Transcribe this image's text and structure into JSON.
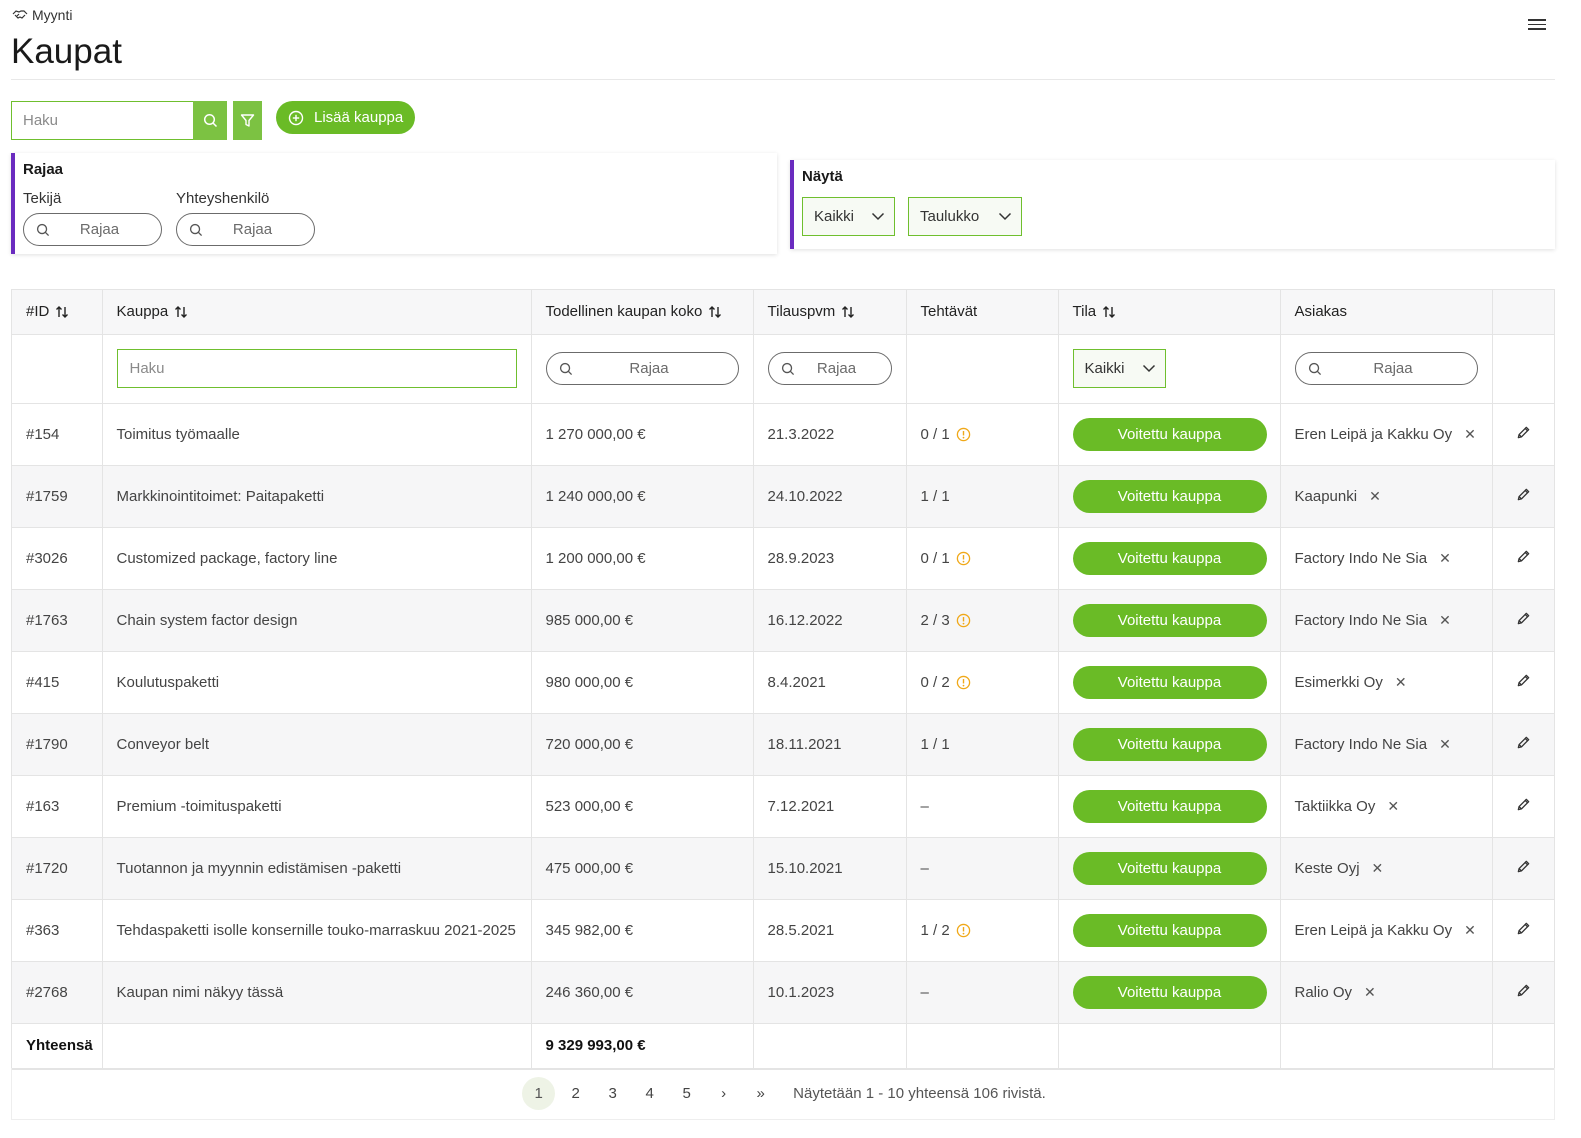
{
  "header": {
    "breadcrumb": "Myynti",
    "title": "Kaupat"
  },
  "toolbar": {
    "search_placeholder": "Haku",
    "add_label": "Lisää kauppa"
  },
  "rajaa_panel": {
    "title": "Rajaa",
    "tekija_label": "Tekijä",
    "tekija_placeholder": "Rajaa",
    "yhteys_label": "Yhteyshenkilö",
    "yhteys_placeholder": "Rajaa"
  },
  "nayta_panel": {
    "title": "Näytä",
    "select1": "Kaikki",
    "select2": "Taulukko"
  },
  "table": {
    "columns": {
      "id": "#ID",
      "kauppa": "Kauppa",
      "koko": "Todellinen kaupan koko",
      "pvm": "Tilauspvm",
      "tehtavat": "Tehtävät",
      "tila": "Tila",
      "asiakas": "Asiakas"
    },
    "filters": {
      "kauppa_placeholder": "Haku",
      "koko_placeholder": "Rajaa",
      "pvm_placeholder": "Rajaa",
      "tila_value": "Kaikki",
      "asiakas_placeholder": "Rajaa"
    },
    "rows": [
      {
        "id": "#154",
        "name": "Toimitus työmaalle",
        "size": "1 270 000,00 €",
        "date": "21.3.2022",
        "tasks": "0 / 1",
        "warn": true,
        "status": "Voitettu kauppa",
        "customer": "Eren Leipä ja Kakku Oy"
      },
      {
        "id": "#1759",
        "name": "Markkinointitoimet: Paitapaketti",
        "size": "1 240 000,00 €",
        "date": "24.10.2022",
        "tasks": "1 / 1",
        "warn": false,
        "status": "Voitettu kauppa",
        "customer": "Kaapunki"
      },
      {
        "id": "#3026",
        "name": "Customized package, factory line",
        "size": "1 200 000,00 €",
        "date": "28.9.2023",
        "tasks": "0 / 1",
        "warn": true,
        "status": "Voitettu kauppa",
        "customer": "Factory Indo Ne Sia"
      },
      {
        "id": "#1763",
        "name": "Chain system factor design",
        "size": "985 000,00 €",
        "date": "16.12.2022",
        "tasks": "2 / 3",
        "warn": true,
        "status": "Voitettu kauppa",
        "customer": "Factory Indo Ne Sia"
      },
      {
        "id": "#415",
        "name": "Koulutuspaketti",
        "size": "980 000,00 €",
        "date": "8.4.2021",
        "tasks": "0 / 2",
        "warn": true,
        "status": "Voitettu kauppa",
        "customer": "Esimerkki Oy"
      },
      {
        "id": "#1790",
        "name": "Conveyor belt",
        "size": "720 000,00 €",
        "date": "18.11.2021",
        "tasks": "1 / 1",
        "warn": false,
        "status": "Voitettu kauppa",
        "customer": "Factory Indo Ne Sia"
      },
      {
        "id": "#163",
        "name": "Premium -toimituspaketti",
        "size": "523 000,00 €",
        "date": "7.12.2021",
        "tasks": "–",
        "warn": false,
        "status": "Voitettu kauppa",
        "customer": "Taktiikka Oy"
      },
      {
        "id": "#1720",
        "name": "Tuotannon ja myynnin edistämisen -paketti",
        "size": "475 000,00 €",
        "date": "15.10.2021",
        "tasks": "–",
        "warn": false,
        "status": "Voitettu kauppa",
        "customer": "Keste Oyj"
      },
      {
        "id": "#363",
        "name": "Tehdaspaketti isolle konsernille touko-marraskuu 2021-2025",
        "size": "345 982,00 €",
        "date": "28.5.2021",
        "tasks": "1 / 2",
        "warn": true,
        "status": "Voitettu kauppa",
        "customer": "Eren Leipä ja Kakku Oy"
      },
      {
        "id": "#2768",
        "name": "Kaupan nimi näkyy tässä",
        "size": "246 360,00 €",
        "date": "10.1.2023",
        "tasks": "–",
        "warn": false,
        "status": "Voitettu kauppa",
        "customer": "Ralio Oy"
      }
    ],
    "footer": {
      "label": "Yhteensä",
      "total": "9 329 993,00 €"
    }
  },
  "pagination": {
    "pages": [
      "1",
      "2",
      "3",
      "4",
      "5"
    ],
    "next": "›",
    "last": "»",
    "info": "Näytetään 1 - 10 yhteensä 106 rivistä."
  },
  "colors": {
    "accent": "#6abb26",
    "panel_border": "#6a2bbf",
    "warn": "#f0a818"
  }
}
